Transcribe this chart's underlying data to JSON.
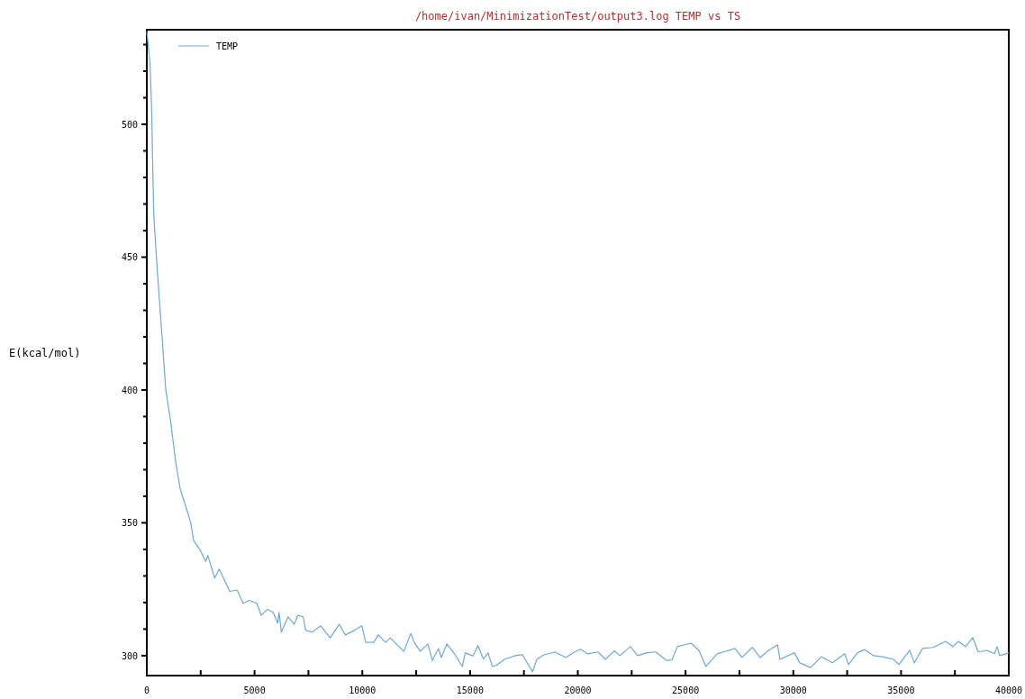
{
  "chart_data": {
    "type": "line",
    "title": "/home/ivan/MinimizationTest/output3.log TEMP vs TS",
    "ylabel": "E(kcal/mol)",
    "xlim": [
      0,
      40000
    ],
    "ylim": [
      292.5,
      535.6
    ],
    "xticks": [
      0,
      {
        "value": 2500,
        "label": null
      },
      5000,
      {
        "value": 7500,
        "label": null
      },
      10000,
      {
        "value": 12500,
        "label": null
      },
      15000,
      {
        "value": 17500,
        "label": null
      },
      20000,
      {
        "value": 22500,
        "label": null
      },
      25000,
      {
        "value": 27500,
        "label": null
      },
      30000,
      {
        "value": 32500,
        "label": null
      },
      35000,
      {
        "value": 37500,
        "label": null
      },
      40000
    ],
    "yticks": [
      300,
      {
        "value": 310,
        "label": null
      },
      {
        "value": 320,
        "label": null
      },
      {
        "value": 330,
        "label": null
      },
      {
        "value": 340,
        "label": null
      },
      350,
      {
        "value": 360,
        "label": null
      },
      {
        "value": 370,
        "label": null
      },
      {
        "value": 380,
        "label": null
      },
      {
        "value": 390,
        "label": null
      },
      400,
      {
        "value": 410,
        "label": null
      },
      {
        "value": 420,
        "label": null
      },
      {
        "value": 430,
        "label": null
      },
      {
        "value": 440,
        "label": null
      },
      450,
      {
        "value": 460,
        "label": null
      },
      {
        "value": 470,
        "label": null
      },
      {
        "value": 480,
        "label": null
      },
      {
        "value": 490,
        "label": null
      },
      500,
      {
        "value": 510,
        "label": null
      },
      {
        "value": 520,
        "label": null
      },
      {
        "value": 530,
        "label": null
      }
    ],
    "grid": false,
    "legend": "top left",
    "marker": "none",
    "line_style": "solid",
    "x": [
      0,
      150,
      230,
      260,
      320,
      430,
      545,
      710,
      880,
      1100,
      1340,
      1550,
      1800,
      2035,
      2170,
      2500,
      2730,
      2830,
      3150,
      3360,
      3850,
      4190,
      4470,
      4750,
      5100,
      5310,
      5590,
      5860,
      6070,
      6140,
      6240,
      6560,
      6840,
      7010,
      7260,
      7370,
      7680,
      8070,
      8510,
      8930,
      9210,
      9630,
      9980,
      10160,
      10530,
      10740,
      11090,
      11300,
      11580,
      11930,
      12250,
      12410,
      12690,
      13040,
      13250,
      13530,
      13670,
      13920,
      14300,
      14640,
      14780,
      15130,
      15370,
      15620,
      15830,
      16040,
      16260,
      16590,
      17100,
      17430,
      17900,
      18100,
      18430,
      18940,
      19440,
      19850,
      20140,
      20440,
      20940,
      21280,
      21690,
      21950,
      22440,
      22780,
      23200,
      23620,
      24120,
      24370,
      24620,
      24950,
      25250,
      25620,
      25950,
      26460,
      26790,
      27290,
      27620,
      28100,
      28460,
      28830,
      29270,
      29380,
      30050,
      30300,
      30800,
      31300,
      31810,
      32390,
      32560,
      32980,
      33310,
      33730,
      34150,
      34650,
      34900,
      35400,
      35620,
      35990,
      36490,
      37070,
      37410,
      37660,
      37990,
      38330,
      38580,
      39000,
      39330,
      39460,
      39580,
      40000
    ],
    "series": [
      {
        "name": "TEMP",
        "color": "#6fa8d6",
        "values": [
          535,
          523,
          504,
          490,
          466.5,
          452,
          438.3,
          420,
          400,
          388.6,
          372.9,
          362.7,
          356.4,
          350.2,
          343.4,
          339.4,
          335.5,
          337.7,
          329.2,
          332.6,
          324.2,
          324.7,
          319.7,
          320.8,
          319.7,
          315.2,
          317.4,
          316.3,
          312.3,
          316.3,
          308.9,
          314.6,
          311.8,
          315.2,
          314.6,
          309.5,
          308.9,
          311.2,
          306.7,
          311.8,
          307.8,
          309.5,
          311.2,
          305,
          305,
          307.8,
          305,
          306.7,
          304.4,
          301.6,
          308.4,
          305,
          301.6,
          304.4,
          298.2,
          302.7,
          299.3,
          304.4,
          300.4,
          295.9,
          301,
          299.9,
          303.8,
          298.7,
          301,
          295.9,
          296.6,
          298.6,
          300,
          300.4,
          293.9,
          298.6,
          300.3,
          301.4,
          299.3,
          301.4,
          302.4,
          300.7,
          301.4,
          298.6,
          301.8,
          300,
          303.4,
          300,
          301.1,
          301.4,
          298.2,
          298.4,
          303.4,
          304.1,
          304.7,
          302,
          295.9,
          300.7,
          301.4,
          302.7,
          299.3,
          303.1,
          299.3,
          301.8,
          304.1,
          298.6,
          301.1,
          297.3,
          295.5,
          299.6,
          297.3,
          300.7,
          296.6,
          301.1,
          302.3,
          300,
          299.6,
          298.6,
          296.6,
          302,
          297.3,
          302.7,
          303.1,
          305.4,
          303.4,
          305.4,
          303.4,
          306.8,
          301.4,
          302,
          300.7,
          303.4,
          300,
          301
        ]
      }
    ]
  }
}
